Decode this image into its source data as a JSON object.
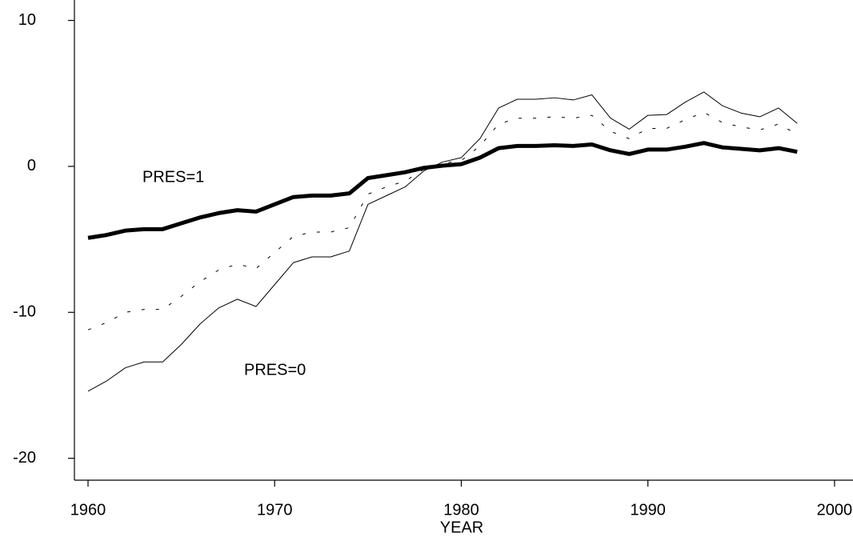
{
  "chart_data": {
    "type": "line",
    "x_label": "YEAR",
    "x": [
      1960,
      1961,
      1962,
      1963,
      1964,
      1965,
      1966,
      1967,
      1968,
      1969,
      1970,
      1971,
      1972,
      1973,
      1974,
      1975,
      1976,
      1977,
      1978,
      1979,
      1980,
      1981,
      1982,
      1983,
      1984,
      1985,
      1986,
      1987,
      1988,
      1989,
      1990,
      1991,
      1992,
      1993,
      1994,
      1995,
      1996,
      1997,
      1998
    ],
    "series": [
      {
        "name": "PRES=1",
        "color": "#000000",
        "line_width": 5,
        "dash": false,
        "values": [
          -4.9,
          -4.7,
          -4.4,
          -4.3,
          -4.3,
          -3.9,
          -3.5,
          -3.2,
          -3.0,
          -3.1,
          -2.6,
          -2.1,
          -2.0,
          -2.0,
          -1.85,
          -0.8,
          -0.6,
          -0.4,
          -0.1,
          0.05,
          0.15,
          0.6,
          1.25,
          1.4,
          1.4,
          1.45,
          1.4,
          1.5,
          1.1,
          0.85,
          1.15,
          1.15,
          1.35,
          1.6,
          1.3,
          1.2,
          1.1,
          1.25,
          1.0
        ]
      },
      {
        "name": "PRES=0",
        "color": "#000000",
        "line_width": 1,
        "dash": false,
        "values": [
          -15.4,
          -14.7,
          -13.8,
          -13.4,
          -13.4,
          -12.2,
          -10.8,
          -9.7,
          -9.1,
          -9.6,
          -8.1,
          -6.6,
          -6.2,
          -6.2,
          -5.8,
          -2.6,
          -2.0,
          -1.4,
          -0.3,
          0.3,
          0.6,
          1.9,
          4.0,
          4.6,
          4.6,
          4.7,
          4.55,
          4.9,
          3.3,
          2.55,
          3.5,
          3.55,
          4.4,
          5.1,
          4.15,
          3.65,
          3.4,
          4.0,
          2.95
        ]
      },
      {
        "color": "#000000",
        "line_width": 1,
        "dash": true,
        "values": [
          -11.2,
          -10.7,
          -10.0,
          -9.8,
          -9.8,
          -8.9,
          -7.9,
          -7.1,
          -6.7,
          -7.0,
          -5.9,
          -4.8,
          -4.5,
          -4.5,
          -4.2,
          -1.9,
          -1.4,
          -1.0,
          -0.2,
          0.2,
          0.4,
          1.4,
          2.9,
          3.3,
          3.3,
          3.4,
          3.3,
          3.5,
          2.4,
          1.9,
          2.6,
          2.6,
          3.2,
          3.7,
          3.0,
          2.7,
          2.5,
          2.9,
          2.2
        ]
      }
    ],
    "xlim": [
      1959.27,
      2000.99
    ],
    "xticks": [
      1960,
      1970,
      1980,
      1990,
      2000
    ],
    "ylim": [
      -21.5,
      11.4
    ],
    "yticks": [
      -20,
      -10,
      0,
      10
    ],
    "grid": false
  }
}
